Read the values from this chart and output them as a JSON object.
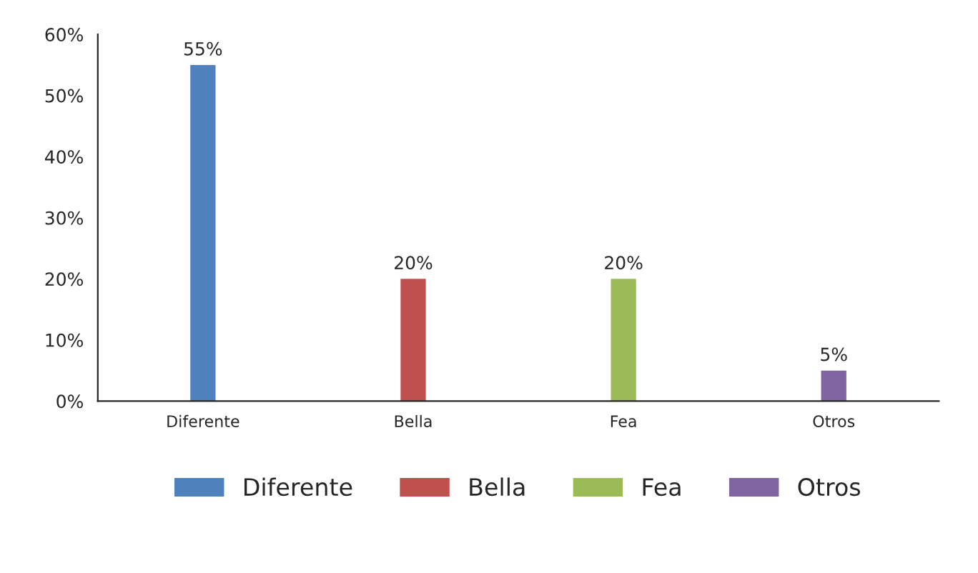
{
  "chart_data": {
    "type": "bar",
    "categories": [
      "Diferente",
      "Bella",
      "Fea",
      "Otros"
    ],
    "series": [
      {
        "name": "Diferente",
        "color": "#4f81bd",
        "values": [
          55,
          null,
          null,
          null
        ],
        "value_labels": [
          "55%",
          null,
          null,
          null
        ]
      },
      {
        "name": "Bella",
        "color": "#c0504d",
        "values": [
          null,
          20,
          null,
          null
        ],
        "value_labels": [
          null,
          "20%",
          null,
          null
        ]
      },
      {
        "name": "Fea",
        "color": "#9bbb59",
        "values": [
          null,
          null,
          20,
          null
        ],
        "value_labels": [
          null,
          null,
          "20%",
          null
        ]
      },
      {
        "name": "Otros",
        "color": "#8064a2",
        "values": [
          null,
          null,
          null,
          5
        ],
        "value_labels": [
          null,
          null,
          null,
          "5%"
        ]
      }
    ],
    "ylim": [
      0,
      60
    ],
    "yticks": [
      {
        "value": 0,
        "label": "0%"
      },
      {
        "value": 10,
        "label": "10%"
      },
      {
        "value": 20,
        "label": "20%"
      },
      {
        "value": 30,
        "label": "30%"
      },
      {
        "value": 40,
        "label": "40%"
      },
      {
        "value": 50,
        "label": "50%"
      },
      {
        "value": 60,
        "label": "60%"
      }
    ],
    "grid": false,
    "legend": "bottom"
  }
}
